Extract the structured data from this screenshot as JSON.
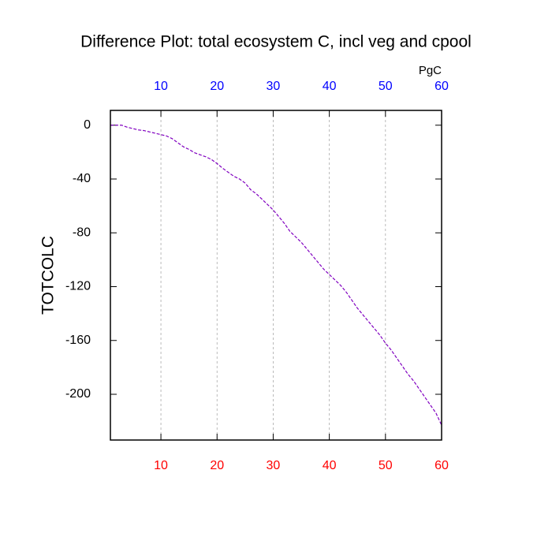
{
  "chart_data": {
    "type": "line",
    "title": "Difference Plot: total ecosystem C, incl veg and cpool",
    "y_label": "TOTCOLC",
    "top_axis_label": "PgC",
    "top_tick_color": "#0000ff",
    "bottom_tick_color": "#ff0000",
    "x": [
      1,
      2,
      3,
      4,
      5,
      6,
      7,
      8,
      9,
      10,
      11,
      12,
      13,
      14,
      15,
      16,
      17,
      18,
      19,
      20,
      21,
      22,
      23,
      24,
      25,
      26,
      27,
      28,
      29,
      30,
      31,
      32,
      33,
      34,
      35,
      36,
      37,
      38,
      39,
      40,
      41,
      42,
      43,
      44,
      45,
      46,
      47,
      48,
      49,
      50,
      51,
      52,
      53,
      54,
      55,
      56,
      57,
      58,
      59,
      60
    ],
    "series": [
      {
        "name": "TOTCOLC",
        "color": "#8000c0",
        "dashed": true,
        "values": [
          0,
          0,
          0,
          -1.5,
          -2.5,
          -3.5,
          -4,
          -5,
          -6,
          -7,
          -8,
          -10,
          -13,
          -16,
          -18,
          -20.5,
          -22,
          -23.5,
          -25.5,
          -28.5,
          -32,
          -35,
          -38,
          -40,
          -43,
          -48,
          -51,
          -55,
          -59,
          -63,
          -68,
          -73,
          -79,
          -83,
          -87,
          -92,
          -97,
          -102,
          -107,
          -111,
          -115,
          -119,
          -124,
          -130,
          -136,
          -141,
          -146,
          -151,
          -156,
          -162,
          -167,
          -173,
          -179,
          -185,
          -190,
          -196,
          -202,
          -208,
          -214,
          -223
        ]
      }
    ],
    "xlim": [
      1,
      60
    ],
    "xticks": [
      10,
      20,
      30,
      40,
      50,
      60
    ],
    "ylim": [
      -234,
      11
    ],
    "yticks": [
      0,
      -40,
      -80,
      -120,
      -160,
      -200
    ],
    "grid": "x"
  }
}
